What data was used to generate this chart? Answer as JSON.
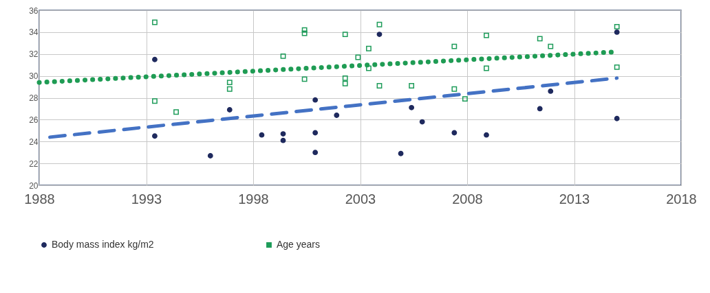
{
  "chart_data": {
    "type": "scatter",
    "xlim": [
      1988,
      2018
    ],
    "xticks": [
      1988,
      1993,
      1998,
      2003,
      2008,
      2013,
      2018
    ],
    "ylim": [
      20,
      36
    ],
    "yticks": [
      20,
      22,
      24,
      26,
      28,
      30,
      32,
      34,
      36
    ],
    "grid": true,
    "legend": "bottom",
    "series": [
      {
        "name": "Body mass index kg/m2",
        "type": "scatter",
        "marker": "circle",
        "color": "#1f2a5e",
        "x": [
          1993.4,
          1993.4,
          1996.0,
          1996.9,
          1998.4,
          1999.4,
          1999.4,
          2000.9,
          2000.9,
          2000.9,
          2001.9,
          2003.9,
          2004.9,
          2005.4,
          2005.9,
          2007.4,
          2008.9,
          2011.4,
          2011.9,
          2015.0,
          2015.0
        ],
        "values": [
          31.5,
          24.5,
          22.7,
          26.9,
          24.6,
          24.7,
          24.1,
          27.8,
          24.8,
          23.0,
          26.4,
          33.8,
          22.9,
          27.1,
          25.8,
          24.8,
          24.6,
          27.0,
          28.6,
          26.1,
          34.0
        ]
      },
      {
        "type": "line",
        "line_style": "dashed",
        "color": "#4472c4",
        "x": [
          1988.5,
          2015.0
        ],
        "values": [
          24.4,
          29.8
        ]
      },
      {
        "name": "Age years",
        "type": "scatter",
        "marker": "square",
        "color": "#1e9c5a",
        "x": [
          1993.4,
          1993.4,
          1994.4,
          1996.9,
          1996.9,
          1999.4,
          2000.4,
          2000.4,
          2000.4,
          2002.3,
          2002.3,
          2002.3,
          2002.9,
          2003.4,
          2003.4,
          2003.9,
          2003.9,
          2005.4,
          2007.4,
          2007.4,
          2007.9,
          2008.9,
          2008.9,
          2011.4,
          2011.9,
          2015.0,
          2015.0
        ],
        "values": [
          34.9,
          27.7,
          26.7,
          29.4,
          28.8,
          31.8,
          29.7,
          34.2,
          33.9,
          33.8,
          29.8,
          29.3,
          31.7,
          32.5,
          30.7,
          34.7,
          29.1,
          29.1,
          28.8,
          32.7,
          27.9,
          33.7,
          30.7,
          33.4,
          32.7,
          34.5,
          30.8
        ]
      },
      {
        "type": "line",
        "line_style": "dotted",
        "color": "#1f9c54",
        "x": [
          1988.0,
          2015.0
        ],
        "values": [
          29.4,
          32.2
        ]
      }
    ]
  }
}
